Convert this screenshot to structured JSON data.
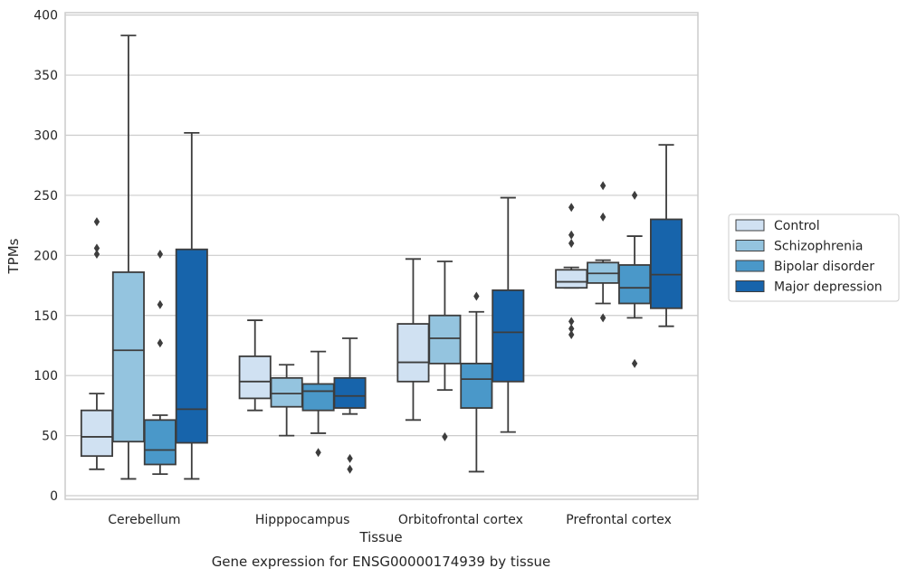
{
  "chart_data": {
    "type": "box",
    "title": "",
    "caption": "Gene expression for ENSG00000174939 by tissue",
    "xlabel": "Tissue",
    "ylabel": "TPMs",
    "ylim": [
      -3,
      402
    ],
    "yticks": [
      0,
      50,
      100,
      150,
      200,
      250,
      300,
      350,
      400
    ],
    "grid": "horizontal",
    "legend_position": "right",
    "categories": [
      "Cerebellum",
      "Hipppocampus",
      "Orbitofrontal cortex",
      "Prefrontal cortex"
    ],
    "series": [
      {
        "name": "Control",
        "color": "#d0e1f2",
        "boxes": [
          {
            "whislo": 22,
            "q1": 33,
            "med": 49,
            "q3": 71,
            "whishi": 85,
            "fliers": [
              228,
              206,
              201
            ]
          },
          {
            "whislo": 71,
            "q1": 81,
            "med": 95,
            "q3": 116,
            "whishi": 146,
            "fliers": []
          },
          {
            "whislo": 63,
            "q1": 95,
            "med": 111,
            "q3": 143,
            "whishi": 197,
            "fliers": []
          },
          {
            "whislo": 173,
            "q1": 173,
            "med": 178,
            "q3": 188,
            "whishi": 190,
            "fliers": [
              240,
              217,
              210,
              145,
              139,
              134
            ]
          }
        ]
      },
      {
        "name": "Schizophrenia",
        "color": "#94c4df",
        "boxes": [
          {
            "whislo": 14,
            "q1": 45,
            "med": 121,
            "q3": 186,
            "whishi": 383,
            "fliers": []
          },
          {
            "whislo": 50,
            "q1": 74,
            "med": 85,
            "q3": 98,
            "whishi": 109,
            "fliers": []
          },
          {
            "whislo": 88,
            "q1": 110,
            "med": 131,
            "q3": 150,
            "whishi": 195,
            "fliers": [
              49
            ]
          },
          {
            "whislo": 160,
            "q1": 177,
            "med": 185,
            "q3": 194,
            "whishi": 196,
            "fliers": [
              258,
              232,
              148
            ]
          }
        ]
      },
      {
        "name": "Bipolar disorder",
        "color": "#4a98c9",
        "boxes": [
          {
            "whislo": 18,
            "q1": 26,
            "med": 38,
            "q3": 63,
            "whishi": 67,
            "fliers": [
              201,
              159,
              127
            ]
          },
          {
            "whislo": 52,
            "q1": 71,
            "med": 87,
            "q3": 93,
            "whishi": 120,
            "fliers": [
              36
            ]
          },
          {
            "whislo": 20,
            "q1": 73,
            "med": 97,
            "q3": 110,
            "whishi": 153,
            "fliers": [
              166
            ]
          },
          {
            "whislo": 148,
            "q1": 160,
            "med": 173,
            "q3": 192,
            "whishi": 216,
            "fliers": [
              250,
              110
            ]
          }
        ]
      },
      {
        "name": "Major depression",
        "color": "#1764ab",
        "boxes": [
          {
            "whislo": 14,
            "q1": 44,
            "med": 72,
            "q3": 205,
            "whishi": 302,
            "fliers": []
          },
          {
            "whislo": 68,
            "q1": 73,
            "med": 83,
            "q3": 98,
            "whishi": 131,
            "fliers": [
              31,
              22
            ]
          },
          {
            "whislo": 53,
            "q1": 95,
            "med": 136,
            "q3": 171,
            "whishi": 248,
            "fliers": []
          },
          {
            "whislo": 141,
            "q1": 156,
            "med": 184,
            "q3": 230,
            "whishi": 292,
            "fliers": []
          }
        ]
      }
    ]
  }
}
